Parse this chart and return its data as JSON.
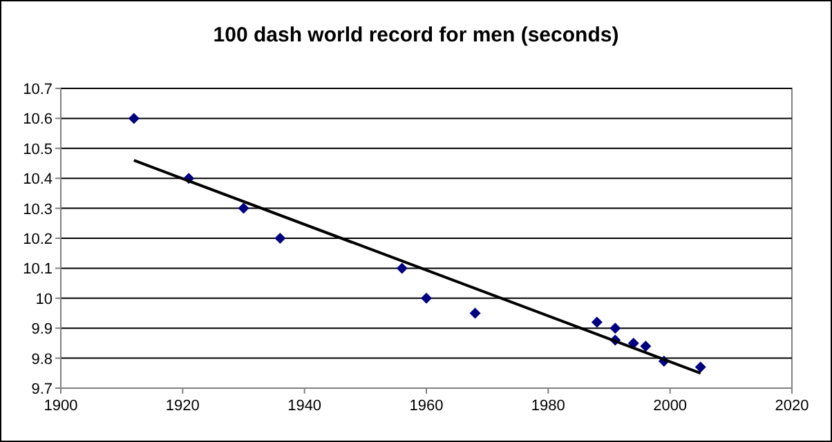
{
  "chart_data": {
    "type": "scatter",
    "title": "100 dash world record for men (seconds)",
    "series": [
      {
        "color": "#000080",
        "marker": "diamond",
        "x": [
          1912,
          1921,
          1930,
          1936,
          1956,
          1960,
          1968,
          1988,
          1991,
          1991,
          1994,
          1996,
          1999,
          2005
        ],
        "values": [
          10.6,
          10.4,
          10.3,
          10.2,
          10.1,
          10.0,
          9.95,
          9.92,
          9.9,
          9.86,
          9.85,
          9.84,
          9.79,
          9.77
        ]
      },
      {
        "type": "line",
        "color": "#000000",
        "x": [
          1912,
          2005
        ],
        "values": [
          10.46,
          9.75
        ]
      }
    ],
    "xlim": [
      1900,
      2020
    ],
    "xticks": [
      1900,
      1920,
      1940,
      1960,
      1980,
      2000,
      2020
    ],
    "ylim": [
      9.7,
      10.7
    ],
    "yticks": [
      9.7,
      9.8,
      9.9,
      10,
      10.1,
      10.2,
      10.3,
      10.4,
      10.5,
      10.6,
      10.7
    ],
    "grid": "y"
  }
}
